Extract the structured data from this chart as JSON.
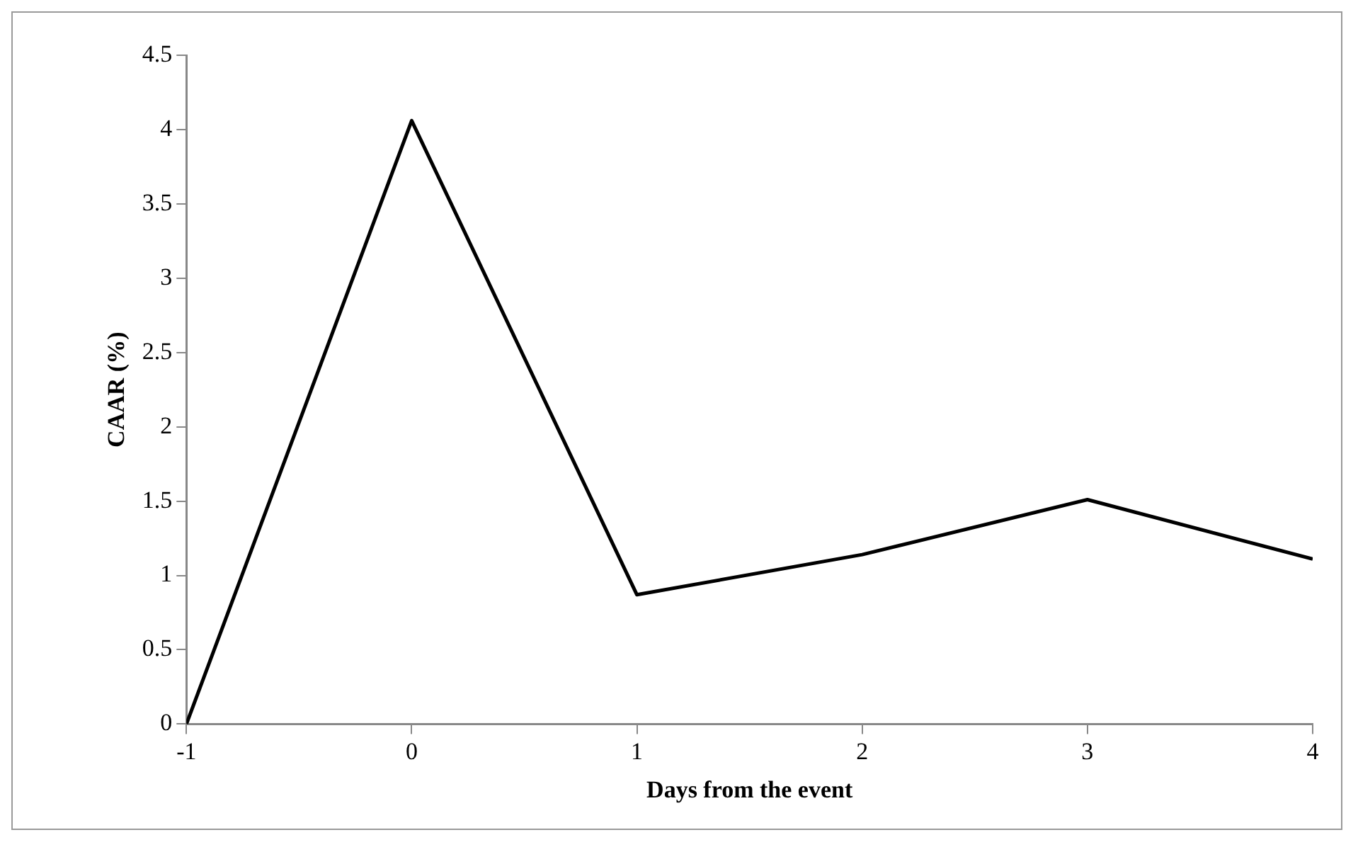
{
  "chart_data": {
    "type": "line",
    "xlabel": "Days from the event",
    "ylabel": "CAAR (%)",
    "x": [
      -1,
      0,
      1,
      2,
      3,
      4
    ],
    "series": [
      {
        "color": "#000000",
        "values": [
          0,
          4.06,
          0.87,
          1.14,
          1.51,
          1.11
        ]
      }
    ],
    "xlim": [
      -1,
      4
    ],
    "xticks": [
      -1,
      0,
      1,
      2,
      3,
      4
    ],
    "ylim": [
      0,
      4.5
    ],
    "yticks": [
      0,
      0.5,
      1,
      1.5,
      2,
      2.5,
      3,
      3.5,
      4,
      4.5
    ],
    "grid": false,
    "legend": false,
    "marker": "none",
    "line_style": "solid"
  }
}
